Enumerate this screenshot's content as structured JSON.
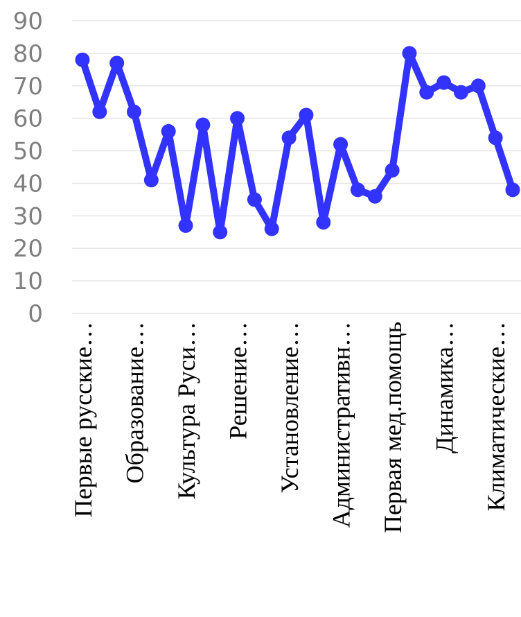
{
  "chart_data": {
    "type": "line",
    "title": "",
    "xlabel": "",
    "ylabel": "",
    "ylim": [
      0,
      90
    ],
    "yticks": [
      0,
      10,
      20,
      30,
      40,
      50,
      60,
      70,
      80,
      90
    ],
    "grid": true,
    "legend": "none",
    "colors": {
      "series": "#3333ff",
      "grid": "#e6e6e6",
      "tick_text": "#7f7f7f"
    },
    "tick_labels": [
      {
        "index": 0,
        "label": "Первые русские…"
      },
      {
        "index": 3,
        "label": "Образование…"
      },
      {
        "index": 6,
        "label": "Культура Руси…"
      },
      {
        "index": 9,
        "label": "Решение…"
      },
      {
        "index": 12,
        "label": "Установление…"
      },
      {
        "index": 15,
        "label": "Административн…"
      },
      {
        "index": 18,
        "label": "Первая мед.помощь"
      },
      {
        "index": 21,
        "label": "Динамика…"
      },
      {
        "index": 24,
        "label": "Климатические…"
      }
    ],
    "series": [
      {
        "values": [
          78,
          62,
          77,
          62,
          41,
          56,
          27,
          58,
          25,
          60,
          35,
          26,
          54,
          61,
          28,
          52,
          38,
          36,
          44,
          80,
          68,
          71,
          68,
          70,
          54,
          38
        ]
      }
    ]
  }
}
